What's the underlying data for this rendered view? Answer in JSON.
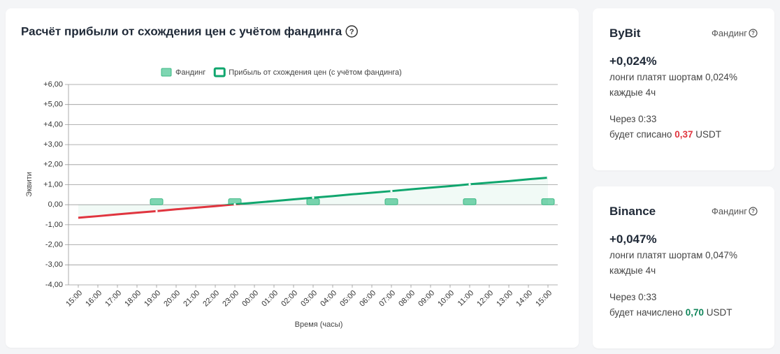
{
  "chart_data": {
    "type": "line",
    "title": "Расчёт прибыли от схождения цен с учётом фандинга",
    "y_label": "Эквити",
    "x_label": "Время (часы)",
    "categories": [
      "15:00",
      "16:00",
      "17:00",
      "18:00",
      "19:00",
      "20:00",
      "21:00",
      "22:00",
      "23:00",
      "00:00",
      "01:00",
      "02:00",
      "03:00",
      "04:00",
      "05:00",
      "06:00",
      "07:00",
      "08:00",
      "09:00",
      "10:00",
      "11:00",
      "12:00",
      "13:00",
      "14:00",
      "15:00"
    ],
    "series": [
      {
        "name": "Фандинг",
        "type": "bar",
        "color": "#7ed6b2",
        "values": [
          null,
          null,
          null,
          null,
          0.3,
          null,
          null,
          null,
          0.3,
          null,
          null,
          null,
          0.3,
          null,
          null,
          null,
          0.3,
          null,
          null,
          null,
          0.3,
          null,
          null,
          null,
          0.3
        ]
      },
      {
        "name": "Прибыль от схождения цен (с учётом фандинга)",
        "type": "line",
        "color": "#10a66e",
        "negative_color": "#e0353f",
        "values": [
          -0.65,
          -0.57,
          -0.48,
          -0.4,
          -0.32,
          -0.23,
          -0.15,
          -0.07,
          0.02,
          0.1,
          0.18,
          0.27,
          0.35,
          0.43,
          0.52,
          0.6,
          0.68,
          0.77,
          0.85,
          0.93,
          1.02,
          1.1,
          1.18,
          1.27,
          1.35
        ]
      }
    ],
    "ylim": [
      -4,
      6
    ],
    "yticks": [
      {
        "value": -4,
        "label": "-4,00"
      },
      {
        "value": -3,
        "label": "-3,00"
      },
      {
        "value": -2,
        "label": "-2,00"
      },
      {
        "value": -1,
        "label": "-1,00"
      },
      {
        "value": 0,
        "label": "0,00"
      },
      {
        "value": 1,
        "label": "+1,00"
      },
      {
        "value": 2,
        "label": "+2,00"
      },
      {
        "value": 3,
        "label": "+3,00"
      },
      {
        "value": 4,
        "label": "+4,00"
      },
      {
        "value": 5,
        "label": "+5,00"
      },
      {
        "value": 6,
        "label": "+6,00"
      }
    ],
    "grid": true
  },
  "exchanges": [
    {
      "name": "ByBit",
      "funding_label": "Фандинг",
      "rate": "+0,024%",
      "description": "лонги платят шортам 0,024%",
      "period": "каждые 4ч",
      "countdown": "Через 0:33",
      "action": "будет списано",
      "amount": "0,37",
      "currency": "USDT",
      "amount_color": "#e0353f"
    },
    {
      "name": "Binance",
      "funding_label": "Фандинг",
      "rate": "+0,047%",
      "description": "лонги платят шортам 0,047%",
      "period": "каждые 4ч",
      "countdown": "Через 0:33",
      "action": "будет начислено",
      "amount": "0,70",
      "currency": "USDT",
      "amount_color": "#10855a"
    }
  ]
}
